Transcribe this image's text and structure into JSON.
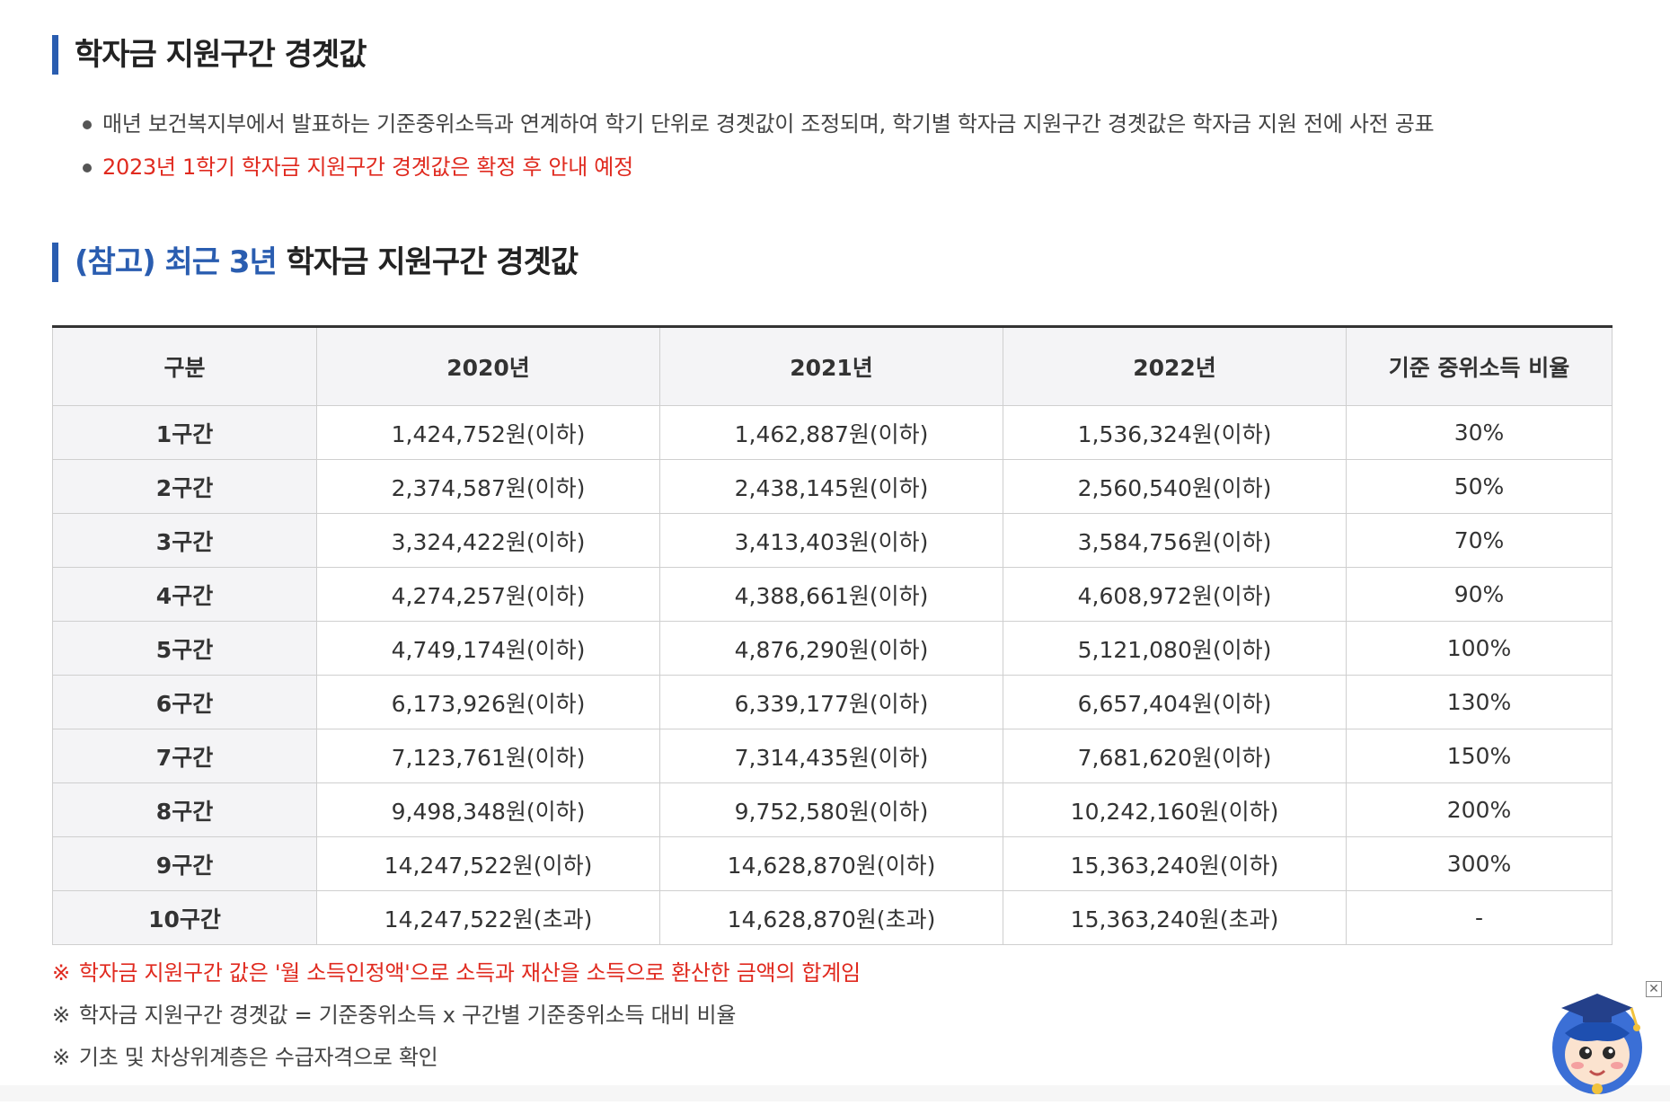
{
  "section1": {
    "title": "학자금 지원구간 경곗값",
    "bullets": [
      "매년 보건복지부에서 발표하는 기준중위소득과 연계하여 학기 단위로 경곗값이 조정되며, 학기별 학자금 지원구간 경곗값은 학자금 지원 전에 사전 공표",
      "2023년 1학기 학자금 지원구간 경곗값은 확정 후 안내 예정"
    ]
  },
  "section2": {
    "title_highlight": "(참고) 최근 3년",
    "title_rest": " 학자금 지원구간 경곗값"
  },
  "table": {
    "headers": [
      "구분",
      "2020년",
      "2021년",
      "2022년",
      "기준 중위소득 비율"
    ],
    "rows": [
      [
        "1구간",
        "1,424,752원(이하)",
        "1,462,887원(이하)",
        "1,536,324원(이하)",
        "30%"
      ],
      [
        "2구간",
        "2,374,587원(이하)",
        "2,438,145원(이하)",
        "2,560,540원(이하)",
        "50%"
      ],
      [
        "3구간",
        "3,324,422원(이하)",
        "3,413,403원(이하)",
        "3,584,756원(이하)",
        "70%"
      ],
      [
        "4구간",
        "4,274,257원(이하)",
        "4,388,661원(이하)",
        "4,608,972원(이하)",
        "90%"
      ],
      [
        "5구간",
        "4,749,174원(이하)",
        "4,876,290원(이하)",
        "5,121,080원(이하)",
        "100%"
      ],
      [
        "6구간",
        "6,173,926원(이하)",
        "6,339,177원(이하)",
        "6,657,404원(이하)",
        "130%"
      ],
      [
        "7구간",
        "7,123,761원(이하)",
        "7,314,435원(이하)",
        "7,681,620원(이하)",
        "150%"
      ],
      [
        "8구간",
        "9,498,348원(이하)",
        "9,752,580원(이하)",
        "10,242,160원(이하)",
        "200%"
      ],
      [
        "9구간",
        "14,247,522원(이하)",
        "14,628,870원(이하)",
        "15,363,240원(이하)",
        "300%"
      ],
      [
        "10구간",
        "14,247,522원(초과)",
        "14,628,870원(초과)",
        "15,363,240원(초과)",
        "-"
      ]
    ]
  },
  "notes": {
    "mark": "※",
    "items": [
      "학자금 지원구간 값은 '월 소득인정액'으로 소득과 재산을 소득으로 환산한 금액의 합계임",
      "학자금 지원구간 경곗값 = 기준중위소득 x 구간별 기준중위소득 대비 비율",
      "기초 및 차상위계층은 수급자격으로 확인"
    ]
  },
  "widgets": {
    "close_glyph": "✕",
    "mascot_icon": "mascot-graduate-icon",
    "close_icon": "close-icon"
  },
  "colors": {
    "accent": "#2a5db0",
    "warning_red": "#e02a1f",
    "header_bg": "#f4f4f6",
    "border": "#cfcfcf"
  }
}
